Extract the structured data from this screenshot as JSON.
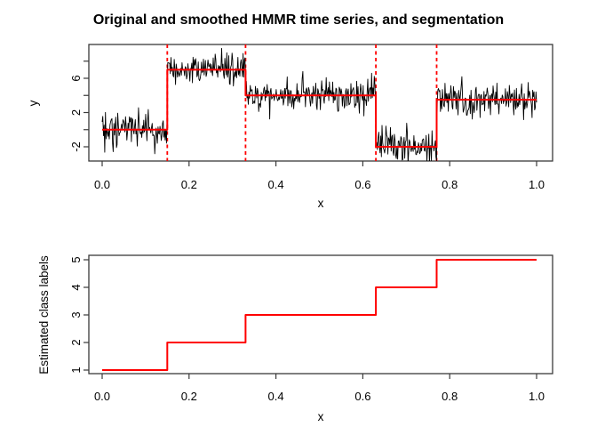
{
  "figure": {
    "title": "Original and smoothed HMMR time series, and segmentation",
    "background_color": "#ffffff",
    "box_color": "#3a3a3a",
    "accent_color": "#ff0000",
    "series_color": "#000000"
  },
  "chart_data": [
    {
      "type": "line",
      "panel": "top",
      "xlabel": "x",
      "ylabel": "y",
      "xlim": [
        0,
        1
      ],
      "ylim": [
        -3.7,
        9.9
      ],
      "grid": false,
      "x_tick_values": [
        0,
        0.2,
        0.4,
        0.6,
        0.8,
        1
      ],
      "x_tick_labels": [
        "0.0",
        "0.2",
        "0.4",
        "0.6",
        "0.8",
        "1.0"
      ],
      "y_tick_values": [
        -2,
        0,
        2,
        4,
        6,
        8
      ],
      "y_tick_labels": [
        "-2",
        "",
        "2",
        "",
        "6",
        ""
      ],
      "series": [
        {
          "name": "original noisy time series",
          "style": "noisy-line",
          "color": "#000000",
          "n_points": 670,
          "noise_sd": 1,
          "segment_means": [
            0,
            7,
            4,
            -2,
            3.5
          ]
        },
        {
          "name": "smoothed HMMR signal",
          "style": "step-line",
          "color": "#ff0000",
          "levels": [
            0,
            7,
            4,
            -2,
            3.5
          ]
        }
      ],
      "change_points": [
        0.15,
        0.33,
        0.63,
        0.77
      ],
      "change_point_style": {
        "color": "#ff0000",
        "dashed": true
      }
    },
    {
      "type": "step",
      "panel": "bottom",
      "xlabel": "x",
      "ylabel": "Estimated class labels",
      "xlim": [
        0,
        1
      ],
      "ylim": [
        1,
        5
      ],
      "grid": false,
      "color": "#ff0000",
      "x_tick_values": [
        0,
        0.2,
        0.4,
        0.6,
        0.8,
        1
      ],
      "x_tick_labels": [
        "0.0",
        "0.2",
        "0.4",
        "0.6",
        "0.8",
        "1.0"
      ],
      "y_tick_values": [
        1,
        2,
        3,
        4,
        5
      ],
      "y_tick_labels": [
        "1",
        "2",
        "3",
        "4",
        "5"
      ],
      "steps": [
        {
          "x_start": 0.0,
          "x_end": 0.15,
          "class": 1
        },
        {
          "x_start": 0.15,
          "x_end": 0.33,
          "class": 2
        },
        {
          "x_start": 0.33,
          "x_end": 0.63,
          "class": 3
        },
        {
          "x_start": 0.63,
          "x_end": 0.77,
          "class": 4
        },
        {
          "x_start": 0.77,
          "x_end": 1.0,
          "class": 5
        }
      ]
    }
  ]
}
